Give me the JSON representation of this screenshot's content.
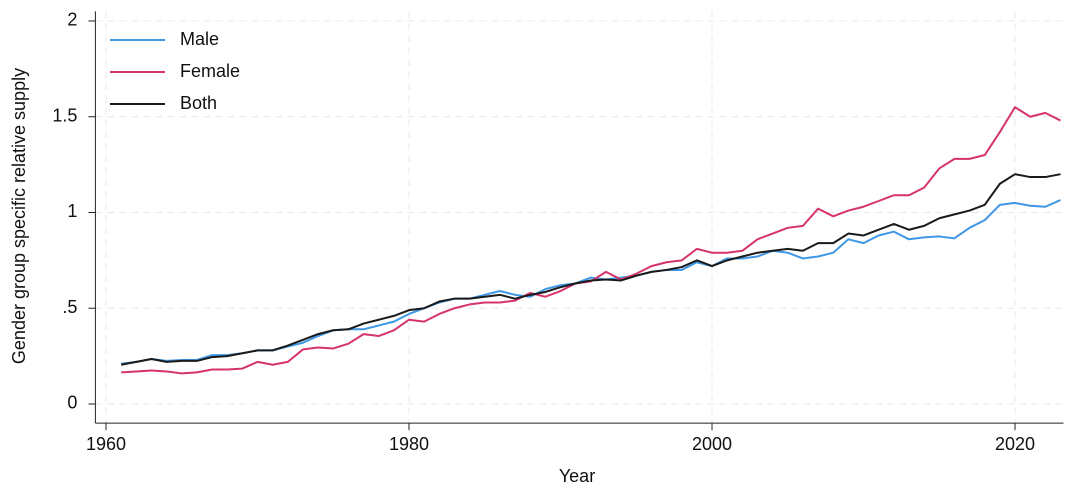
{
  "chart_data": {
    "type": "line",
    "x_label": "Year",
    "y_label": "Gender group specific relative supply",
    "x": [
      1961,
      1962,
      1963,
      1964,
      1965,
      1966,
      1967,
      1968,
      1969,
      1970,
      1971,
      1972,
      1973,
      1974,
      1975,
      1976,
      1977,
      1978,
      1979,
      1980,
      1981,
      1982,
      1983,
      1984,
      1985,
      1986,
      1987,
      1988,
      1989,
      1990,
      1991,
      1992,
      1993,
      1994,
      1995,
      1996,
      1997,
      1998,
      1999,
      2000,
      2001,
      2002,
      2003,
      2004,
      2005,
      2006,
      2007,
      2008,
      2009,
      2010,
      2011,
      2012,
      2013,
      2014,
      2015,
      2016,
      2017,
      2018,
      2019,
      2020,
      2021,
      2022,
      2023
    ],
    "series": [
      {
        "name": "Male",
        "color": "#3f97e6",
        "values": [
          0.21,
          0.22,
          0.235,
          0.225,
          0.23,
          0.23,
          0.255,
          0.255,
          0.265,
          0.28,
          0.28,
          0.3,
          0.32,
          0.355,
          0.385,
          0.39,
          0.39,
          0.41,
          0.43,
          0.47,
          0.5,
          0.53,
          0.55,
          0.55,
          0.57,
          0.59,
          0.57,
          0.56,
          0.6,
          0.62,
          0.63,
          0.66,
          0.65,
          0.66,
          0.67,
          0.69,
          0.7,
          0.7,
          0.74,
          0.72,
          0.76,
          0.76,
          0.77,
          0.8,
          0.79,
          0.76,
          0.77,
          0.79,
          0.86,
          0.84,
          0.88,
          0.9,
          0.86,
          0.87,
          0.875,
          0.865,
          0.92,
          0.96,
          1.04,
          1.05,
          1.035,
          1.03,
          1.065
        ]
      },
      {
        "name": "Female",
        "color": "#d6336c",
        "values": [
          0.165,
          0.17,
          0.175,
          0.17,
          0.16,
          0.165,
          0.18,
          0.18,
          0.185,
          0.22,
          0.205,
          0.22,
          0.285,
          0.295,
          0.29,
          0.315,
          0.365,
          0.355,
          0.385,
          0.44,
          0.43,
          0.47,
          0.5,
          0.52,
          0.53,
          0.53,
          0.54,
          0.58,
          0.56,
          0.59,
          0.63,
          0.64,
          0.69,
          0.65,
          0.68,
          0.72,
          0.74,
          0.75,
          0.81,
          0.79,
          0.79,
          0.8,
          0.86,
          0.89,
          0.92,
          0.93,
          1.02,
          0.98,
          1.01,
          1.03,
          1.06,
          1.09,
          1.09,
          1.13,
          1.23,
          1.28,
          1.28,
          1.3,
          1.42,
          1.55,
          1.5,
          1.52,
          1.48
        ]
      },
      {
        "name": "Both",
        "color": "#1a1a1a",
        "values": [
          0.205,
          0.22,
          0.235,
          0.22,
          0.225,
          0.225,
          0.245,
          0.25,
          0.265,
          0.28,
          0.28,
          0.305,
          0.335,
          0.365,
          0.385,
          0.39,
          0.42,
          0.44,
          0.46,
          0.49,
          0.5,
          0.535,
          0.55,
          0.55,
          0.56,
          0.57,
          0.55,
          0.57,
          0.585,
          0.61,
          0.63,
          0.645,
          0.65,
          0.645,
          0.67,
          0.69,
          0.7,
          0.715,
          0.75,
          0.72,
          0.75,
          0.77,
          0.79,
          0.8,
          0.81,
          0.8,
          0.84,
          0.84,
          0.89,
          0.88,
          0.91,
          0.94,
          0.91,
          0.93,
          0.97,
          0.99,
          1.01,
          1.04,
          1.15,
          1.2,
          1.185,
          1.185,
          1.2
        ]
      }
    ],
    "xlim": [
      1959.3,
      2023.2
    ],
    "ylim": [
      -0.1,
      2.05
    ],
    "xticks": [
      1960,
      1980,
      2000,
      2020
    ],
    "yticks": [
      0,
      {
        "value": 0.5,
        "label": ".5"
      },
      1,
      1.5,
      2
    ],
    "grid": true,
    "legend": "top-left"
  }
}
